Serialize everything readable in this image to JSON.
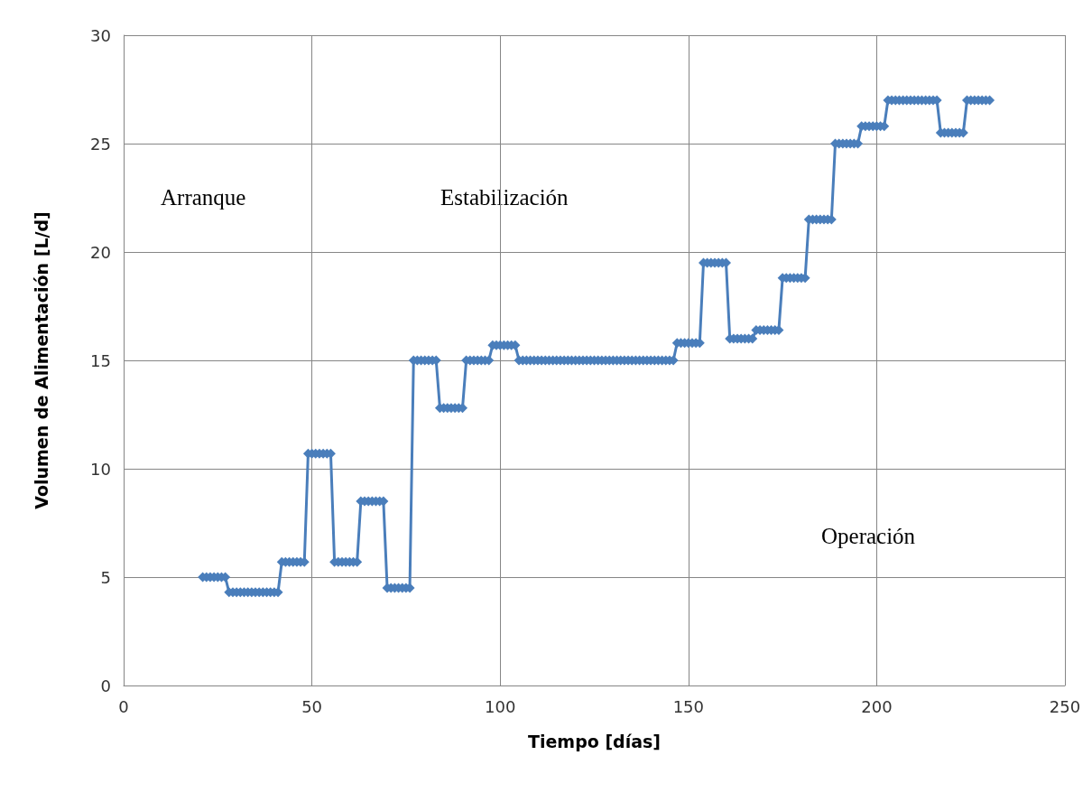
{
  "chart_data": {
    "type": "line",
    "xlabel": "Tiempo [días]",
    "ylabel": "Volumen de Alimentación [L/d]",
    "annotations": [
      "Arranque",
      "Estabilización",
      "Operación"
    ],
    "xlim": [
      0,
      250
    ],
    "xticks": [
      0,
      50,
      100,
      150,
      200,
      250
    ],
    "ylim": [
      0,
      30
    ],
    "yticks": [
      0,
      5,
      10,
      15,
      20,
      25,
      30
    ],
    "grid": true,
    "marker": "diamond",
    "line_style": "solid",
    "series": [
      {
        "color": "#4a7ebb",
        "x": [
          21,
          22,
          23,
          24,
          25,
          26,
          27,
          28,
          29,
          30,
          31,
          32,
          33,
          34,
          35,
          36,
          37,
          38,
          39,
          40,
          41,
          42,
          43,
          44,
          45,
          46,
          47,
          48,
          49,
          50,
          51,
          52,
          53,
          54,
          55,
          56,
          57,
          58,
          59,
          60,
          61,
          62,
          63,
          64,
          65,
          66,
          67,
          68,
          69,
          70,
          71,
          72,
          73,
          74,
          75,
          76,
          77,
          78,
          79,
          80,
          81,
          82,
          83,
          84,
          85,
          86,
          87,
          88,
          89,
          90,
          91,
          92,
          93,
          94,
          95,
          96,
          97,
          98,
          99,
          100,
          101,
          102,
          103,
          104,
          105,
          106,
          107,
          108,
          109,
          110,
          111,
          112,
          113,
          114,
          115,
          116,
          117,
          118,
          119,
          120,
          121,
          122,
          123,
          124,
          125,
          126,
          127,
          128,
          129,
          130,
          131,
          132,
          133,
          134,
          135,
          136,
          137,
          138,
          139,
          140,
          141,
          142,
          143,
          144,
          145,
          146,
          147,
          148,
          149,
          150,
          151,
          152,
          153,
          154,
          155,
          156,
          157,
          158,
          159,
          160,
          161,
          162,
          163,
          164,
          165,
          166,
          167,
          168,
          169,
          170,
          171,
          172,
          173,
          174,
          175,
          176,
          177,
          178,
          179,
          180,
          181,
          182,
          183,
          184,
          185,
          186,
          187,
          188,
          189,
          190,
          191,
          192,
          193,
          194,
          195,
          196,
          197,
          198,
          199,
          200,
          201,
          202,
          203,
          204,
          205,
          206,
          207,
          208,
          209,
          210,
          211,
          212,
          213,
          214,
          215,
          216,
          217,
          218,
          219,
          220,
          221,
          222,
          223,
          224,
          225,
          226,
          227,
          228,
          229,
          230
        ],
        "values": [
          5,
          5,
          5,
          5,
          5,
          5,
          5,
          4.3,
          4.3,
          4.3,
          4.3,
          4.3,
          4.3,
          4.3,
          4.3,
          4.3,
          4.3,
          4.3,
          4.3,
          4.3,
          4.3,
          5.7,
          5.7,
          5.7,
          5.7,
          5.7,
          5.7,
          5.7,
          10.7,
          10.7,
          10.7,
          10.7,
          10.7,
          10.7,
          10.7,
          5.7,
          5.7,
          5.7,
          5.7,
          5.7,
          5.7,
          5.7,
          8.5,
          8.5,
          8.5,
          8.5,
          8.5,
          8.5,
          8.5,
          4.5,
          4.5,
          4.5,
          4.5,
          4.5,
          4.5,
          4.5,
          15,
          15,
          15,
          15,
          15,
          15,
          15,
          12.8,
          12.8,
          12.8,
          12.8,
          12.8,
          12.8,
          12.8,
          15,
          15,
          15,
          15,
          15,
          15,
          15,
          15.7,
          15.7,
          15.7,
          15.7,
          15.7,
          15.7,
          15.7,
          15,
          15,
          15,
          15,
          15,
          15,
          15,
          15,
          15,
          15,
          15,
          15,
          15,
          15,
          15,
          15,
          15,
          15,
          15,
          15,
          15,
          15,
          15,
          15,
          15,
          15,
          15,
          15,
          15,
          15,
          15,
          15,
          15,
          15,
          15,
          15,
          15,
          15,
          15,
          15,
          15,
          15,
          15.8,
          15.8,
          15.8,
          15.8,
          15.8,
          15.8,
          15.8,
          19.5,
          19.5,
          19.5,
          19.5,
          19.5,
          19.5,
          19.5,
          16,
          16,
          16,
          16,
          16,
          16,
          16,
          16.4,
          16.4,
          16.4,
          16.4,
          16.4,
          16.4,
          16.4,
          18.8,
          18.8,
          18.8,
          18.8,
          18.8,
          18.8,
          18.8,
          21.5,
          21.5,
          21.5,
          21.5,
          21.5,
          21.5,
          21.5,
          25,
          25,
          25,
          25,
          25,
          25,
          25,
          25.8,
          25.8,
          25.8,
          25.8,
          25.8,
          25.8,
          25.8,
          27,
          27,
          27,
          27,
          27,
          27,
          27,
          27,
          27,
          27,
          27,
          27,
          27,
          27,
          25.5,
          25.5,
          25.5,
          25.5,
          25.5,
          25.5,
          25.5,
          27,
          27,
          27,
          27,
          27,
          27,
          27
        ]
      }
    ]
  }
}
